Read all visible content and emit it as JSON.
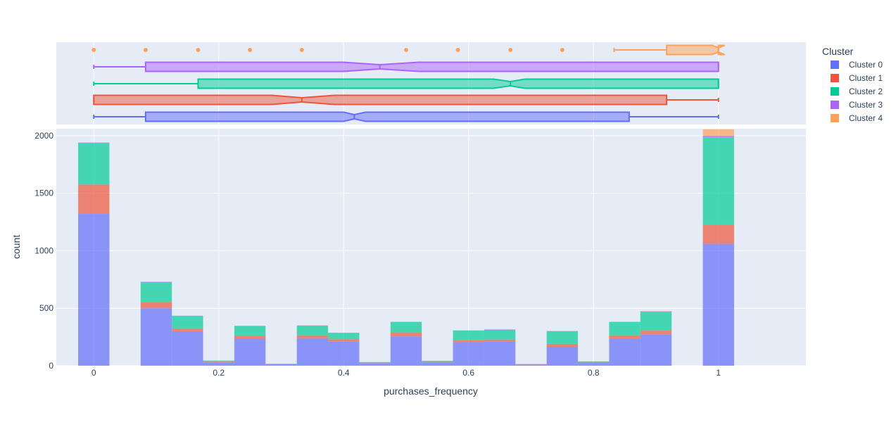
{
  "chart_data": {
    "type": "bar",
    "barmode": "stack",
    "xlabel": "purchases_frequency",
    "ylabel": "count",
    "xlim": [
      -0.06,
      1.14
    ],
    "ylim": [
      0,
      2060
    ],
    "x_ticks": [
      0,
      0.2,
      0.4,
      0.6,
      0.8,
      1
    ],
    "x_tick_labels": [
      "0",
      "0.2",
      "0.4",
      "0.6",
      "0.8",
      "1"
    ],
    "y_ticks": [
      0,
      500,
      1000,
      1500,
      2000
    ],
    "y_tick_labels": [
      "0",
      "500",
      "1000",
      "1500",
      "2000"
    ],
    "bin_width": 0.05,
    "bin_starts": [
      -0.025,
      0.075,
      0.125,
      0.175,
      0.225,
      0.275,
      0.325,
      0.375,
      0.425,
      0.475,
      0.525,
      0.575,
      0.625,
      0.675,
      0.725,
      0.775,
      0.825,
      0.875,
      0.975
    ],
    "series": [
      {
        "name": "Cluster 0",
        "color": "#636efa",
        "values": [
          1320,
          500,
          300,
          30,
          235,
          12,
          240,
          210,
          22,
          255,
          30,
          205,
          210,
          10,
          165,
          30,
          235,
          270,
          1060
        ]
      },
      {
        "name": "Cluster 1",
        "color": "#ef553b",
        "values": [
          255,
          55,
          25,
          5,
          25,
          0,
          25,
          20,
          2,
          35,
          3,
          20,
          18,
          2,
          25,
          3,
          30,
          35,
          165
        ]
      },
      {
        "name": "Cluster 2",
        "color": "#00cc96",
        "values": [
          360,
          170,
          105,
          10,
          85,
          5,
          80,
          55,
          8,
          90,
          10,
          80,
          85,
          3,
          110,
          5,
          115,
          165,
          760
        ]
      },
      {
        "name": "Cluster 3",
        "color": "#ab63fa",
        "values": [
          5,
          5,
          5,
          0,
          2,
          0,
          5,
          2,
          0,
          2,
          0,
          2,
          3,
          0,
          2,
          0,
          2,
          3,
          15
        ]
      },
      {
        "name": "Cluster 4",
        "color": "#ffa15a",
        "values": [
          0,
          0,
          0,
          0,
          0,
          0,
          2,
          0,
          0,
          0,
          0,
          0,
          0,
          0,
          0,
          0,
          0,
          2,
          55
        ]
      }
    ],
    "box_plots": [
      {
        "name": "Cluster 0",
        "color": "#636efa",
        "lower_fence": 0,
        "q1": 0.083,
        "median": 0.417,
        "q3": 0.857,
        "upper_fence": 1,
        "notch_low": 0.4,
        "notch_high": 0.435,
        "outliers": []
      },
      {
        "name": "Cluster 1",
        "color": "#ef553b",
        "lower_fence": 0,
        "q1": 0,
        "median": 0.333,
        "q3": 0.917,
        "upper_fence": 1,
        "notch_low": 0.285,
        "notch_high": 0.385,
        "outliers": []
      },
      {
        "name": "Cluster 2",
        "color": "#00cc96",
        "lower_fence": 0,
        "q1": 0.167,
        "median": 0.667,
        "q3": 1,
        "upper_fence": 1,
        "notch_low": 0.64,
        "notch_high": 0.69,
        "outliers": []
      },
      {
        "name": "Cluster 3",
        "color": "#ab63fa",
        "lower_fence": 0,
        "q1": 0.083,
        "median": 0.458,
        "q3": 1,
        "upper_fence": 1,
        "notch_low": 0.4,
        "notch_high": 0.52,
        "outliers": []
      },
      {
        "name": "Cluster 4",
        "color": "#ffa15a",
        "lower_fence": 0.833,
        "q1": 0.917,
        "median": 1,
        "q3": 1,
        "upper_fence": 1,
        "notch_low": 0.99,
        "notch_high": 1.01,
        "outliers": [
          0,
          0.083,
          0.167,
          0.25,
          0.333,
          0.5,
          0.583,
          0.667,
          0.75
        ]
      }
    ],
    "legend": {
      "title": "Cluster",
      "position": "right"
    },
    "grid": true
  }
}
